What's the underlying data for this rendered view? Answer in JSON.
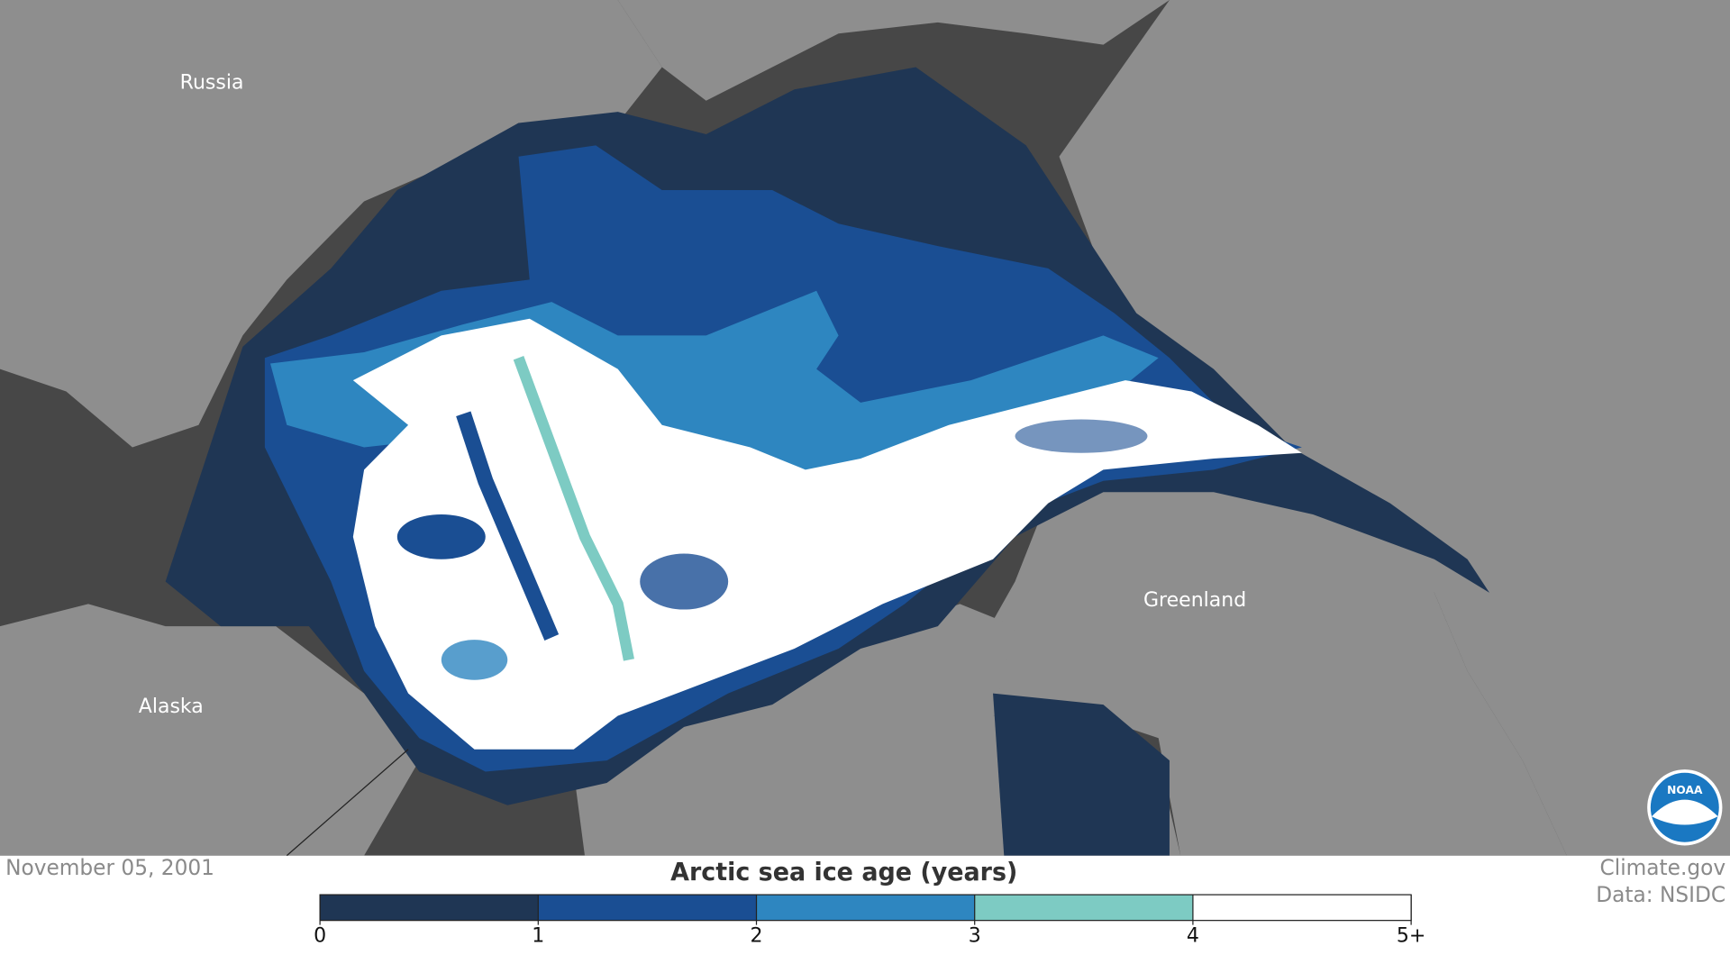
{
  "labels": {
    "russia": "Russia",
    "alaska": "Alaska",
    "greenland": "Greenland"
  },
  "date": "November 05, 2001",
  "credits": [
    "Climate.gov",
    "Data: NSIDC"
  ],
  "logo": "NOAA",
  "legend": {
    "title": "Arctic sea ice age (years)",
    "ticks": [
      0,
      1,
      2,
      3,
      4,
      {
        "value": 5,
        "label": "5+"
      }
    ],
    "colors": [
      "#1f3654",
      "#1a4e93",
      "#2e86c0",
      "#7dcbc3",
      "#ffffff"
    ]
  }
}
